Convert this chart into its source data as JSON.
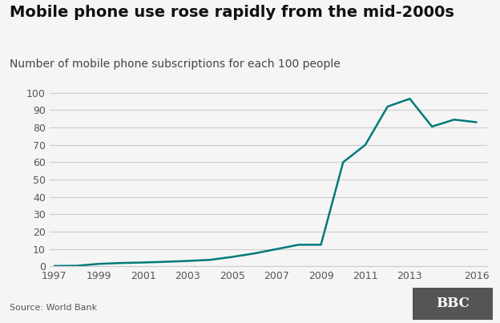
{
  "title": "Mobile phone use rose rapidly from the mid-2000s",
  "subtitle": "Number of mobile phone subscriptions for each 100 people",
  "source": "Source: World Bank",
  "bbc_label": "BBC",
  "years": [
    1997,
    1998,
    1999,
    2000,
    2001,
    2002,
    2003,
    2004,
    2005,
    2006,
    2007,
    2008,
    2009,
    2010,
    2011,
    2012,
    2013,
    2014,
    2015,
    2016
  ],
  "values": [
    0.3,
    0.4,
    1.5,
    2.0,
    2.3,
    2.7,
    3.2,
    3.8,
    5.5,
    7.5,
    10.0,
    12.5,
    12.5,
    60.0,
    70.0,
    92.0,
    96.5,
    80.5,
    84.5,
    83.0
  ],
  "line_color": "#007a7a",
  "bg_color": "#f5f5f5",
  "plot_bg": "#f5f5f5",
  "grid_color": "#cccccc",
  "title_fontsize": 14,
  "subtitle_fontsize": 10,
  "source_fontsize": 8,
  "tick_fontsize": 9,
  "tick_label_color": "#555555",
  "xticks": [
    1997,
    1999,
    2001,
    2003,
    2005,
    2007,
    2009,
    2011,
    2013,
    2016
  ],
  "yticks": [
    0,
    10,
    20,
    30,
    40,
    50,
    60,
    70,
    80,
    90,
    100
  ],
  "xlim": [
    1996.8,
    2016.5
  ],
  "ylim": [
    0,
    105
  ]
}
